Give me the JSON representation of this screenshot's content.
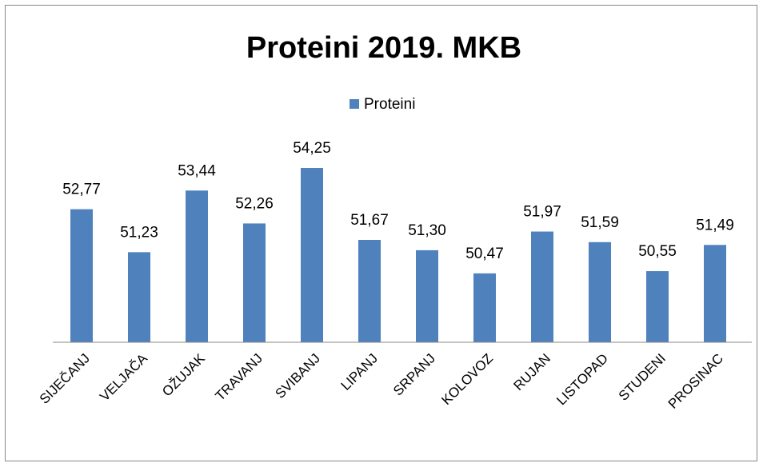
{
  "chart_data": {
    "type": "bar",
    "title": "Proteini 2019. MKB",
    "categories": [
      "SIJEČANJ",
      "VELJAČA",
      "OŽUJAK",
      "TRAVANJ",
      "SVIBANJ",
      "LIPANJ",
      "SRPANJ",
      "KOLOVOZ",
      "RUJAN",
      "LISTOPAD",
      "STUDENI",
      "PROSINAC"
    ],
    "series": [
      {
        "name": "Proteini",
        "color": "#4f81bd",
        "values": [
          52.77,
          51.23,
          53.44,
          52.26,
          54.25,
          51.67,
          51.3,
          50.47,
          51.97,
          51.59,
          50.55,
          51.49
        ],
        "value_labels": [
          "52,77",
          "51,23",
          "53,44",
          "52,26",
          "54,25",
          "51,67",
          "51,30",
          "50,47",
          "51,97",
          "51,59",
          "50,55",
          "51,49"
        ]
      }
    ],
    "ylim": [
      48,
      56
    ],
    "legend": "top"
  }
}
